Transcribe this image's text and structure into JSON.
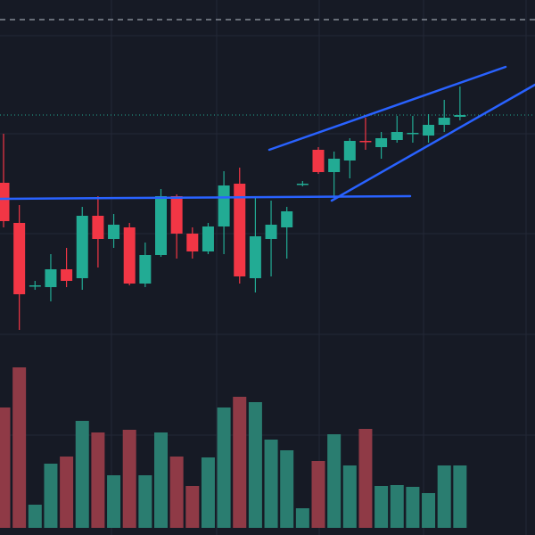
{
  "chart_data": [
    {
      "type": "candlestick",
      "up_color": "#22ab94",
      "down_color": "#f23645",
      "ylim": [
        0,
        600
      ],
      "open": [
        395,
        350,
        279,
        278,
        298,
        288,
        358,
        332,
        345,
        282,
        314,
        380,
        338,
        318,
        346,
        394,
        288,
        332,
        345,
        393,
        432,
        407,
        420,
        442,
        435,
        443,
        450,
        448,
        460,
        469
      ],
      "high": [
        450,
        370,
        285,
        315,
        322,
        368,
        380,
        360,
        350,
        328,
        388,
        382,
        345,
        350,
        408,
        412,
        378,
        375,
        368,
        397,
        435,
        430,
        445,
        468,
        452,
        470,
        470,
        472,
        488,
        503
      ],
      "low": [
        345,
        230,
        275,
        262,
        278,
        275,
        300,
        322,
        280,
        278,
        312,
        310,
        310,
        315,
        315,
        282,
        272,
        290,
        310,
        391,
        405,
        378,
        400,
        432,
        422,
        440,
        440,
        440,
        452,
        465
      ],
      "close": [
        352,
        270,
        280,
        298,
        285,
        358,
        332,
        348,
        282,
        314,
        380,
        338,
        318,
        346,
        392,
        290,
        335,
        348,
        363,
        394,
        407,
        422,
        442,
        441,
        445,
        452,
        451,
        460,
        468,
        471
      ]
    },
    {
      "type": "volume",
      "up_color": "#2a7d70",
      "down_color": "#8f3a46",
      "ylim": [
        0,
        592
      ],
      "values": [
        135,
        180,
        26,
        72,
        80,
        120,
        107,
        59,
        110,
        59,
        107,
        80,
        47,
        79,
        135,
        147,
        141,
        99,
        87,
        22,
        75,
        105,
        70,
        111,
        47,
        48,
        46,
        39,
        70,
        70
      ]
    }
  ]
}
